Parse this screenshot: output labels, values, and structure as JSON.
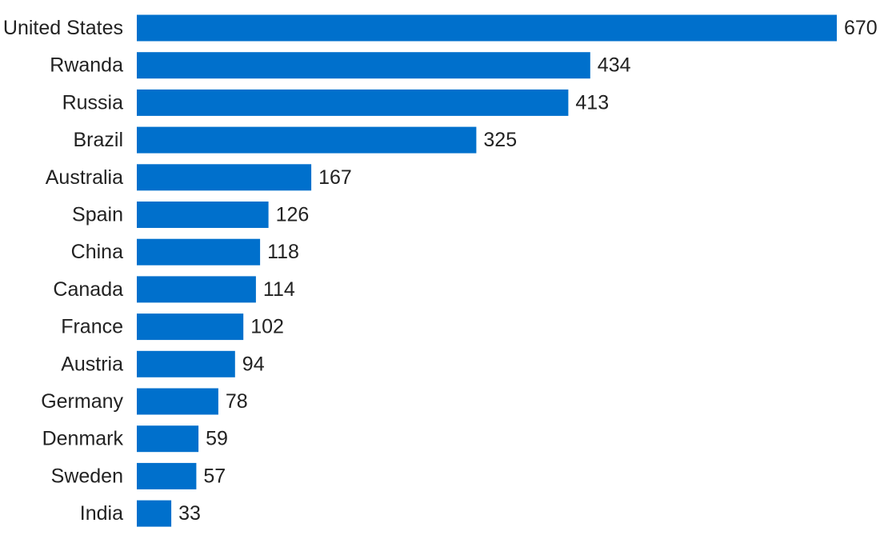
{
  "chart_data": {
    "type": "bar",
    "orientation": "horizontal",
    "categories": [
      "United States",
      "Rwanda",
      "Russia",
      "Brazil",
      "Australia",
      "Spain",
      "China",
      "Canada",
      "France",
      "Austria",
      "Germany",
      "Denmark",
      "Sweden",
      "India"
    ],
    "values": [
      670,
      434,
      413,
      325,
      167,
      126,
      118,
      114,
      102,
      94,
      78,
      59,
      57,
      33
    ],
    "data_labels": [
      "670",
      "434",
      "413",
      "325",
      "167",
      "126",
      "118",
      "114",
      "102",
      "94",
      "78",
      "59",
      "57",
      "33"
    ],
    "title": "",
    "xlabel": "",
    "ylabel": "",
    "xlim": [
      0,
      670
    ],
    "grid": false,
    "legend": "none",
    "bar_color": "#0070CC",
    "text_color": "#222222"
  }
}
